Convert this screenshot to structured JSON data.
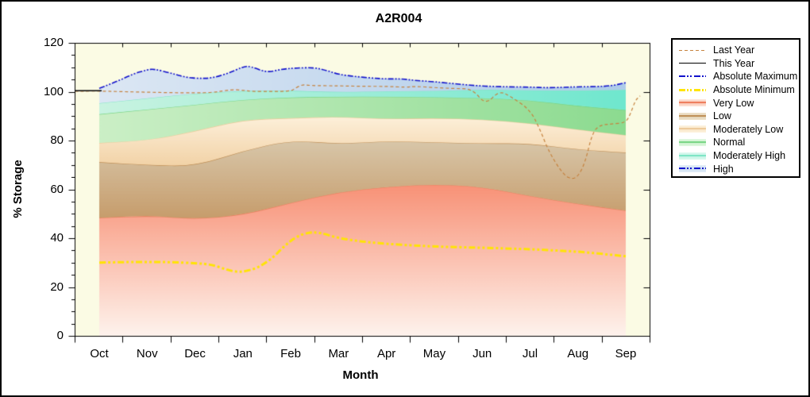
{
  "title": "A2R004",
  "axes": {
    "x_label": "Month",
    "y_label": "% Storage",
    "y_major_ticks": [
      0,
      20,
      40,
      60,
      80,
      100,
      120
    ],
    "y_minor_step": 5,
    "y_range": [
      0,
      120
    ],
    "months": [
      "Oct",
      "Nov",
      "Dec",
      "Jan",
      "Feb",
      "Mar",
      "Apr",
      "May",
      "Jun",
      "Jul",
      "Aug",
      "Sep"
    ]
  },
  "colors": {
    "plot_background": "#FBFBE4",
    "axis": "#000000",
    "last_year": "#C6823E",
    "this_year": "#000000",
    "absolute_maximum": "#1212CC",
    "absolute_minimum": "#FFE405",
    "very_low_edge": "#EE7F5F",
    "low_edge": "#C09058",
    "moderately_low_edge": "#EDCB9B",
    "normal_edge": "#7BD688",
    "moderately_high_edge": "#7FE5C6"
  },
  "legend": {
    "items": [
      {
        "label": "Last Year",
        "swatch": "line",
        "color": "#C6823E",
        "dash": "dash",
        "thickness": 1
      },
      {
        "label": "This Year",
        "swatch": "line",
        "color": "#000000",
        "dash": "solid",
        "thickness": 1
      },
      {
        "label": "Absolute Maximum",
        "swatch": "line",
        "color": "#1212CC",
        "dash": "dashdotdot",
        "thickness": 2
      },
      {
        "label": "Absolute Minimum",
        "swatch": "line",
        "color": "#FFE405",
        "dash": "dashdotdot",
        "thickness": 3
      },
      {
        "label": "Very Low",
        "swatch": "band",
        "fill_top": "#FAC0AC",
        "fill_bottom": "#FDE6DC",
        "edge": "#EE7F5F"
      },
      {
        "label": "Low",
        "swatch": "band",
        "fill_top": "#E0CFB2",
        "fill_bottom": "#EFE3CC",
        "edge": "#C09058"
      },
      {
        "label": "Moderately Low",
        "swatch": "band",
        "fill_top": "#F9E4C4",
        "fill_bottom": "#FDF3E0",
        "edge": "#EDCB9B"
      },
      {
        "label": "Normal",
        "swatch": "band",
        "fill_top": "#C4EFC6",
        "fill_bottom": "#E2F8E2",
        "edge": "#7BD688"
      },
      {
        "label": "Moderately High",
        "swatch": "band",
        "fill_top": "#BFF3E3",
        "fill_bottom": "#DFF9F0",
        "edge": "#7FE5C6"
      },
      {
        "label": "High",
        "swatch": "band_line",
        "fill_top": "#C8DCF0",
        "fill_bottom": "#E4EEF8",
        "line_color": "#1212CC"
      }
    ]
  },
  "chart_data": {
    "type": "area",
    "title": "A2R004",
    "xlabel": "Month",
    "ylabel": "% Storage",
    "ylim": [
      0,
      120
    ],
    "x_unit": "month index, 0 = Oct through 11 = Sep",
    "categories": [
      "Oct",
      "Nov",
      "Dec",
      "Jan",
      "Feb",
      "Mar",
      "Apr",
      "May",
      "Jun",
      "Jul",
      "Aug",
      "Sep"
    ],
    "bands": [
      {
        "name": "Very Low",
        "bottom": 0,
        "top": [
          48.3,
          49.3,
          47.8,
          49.5,
          54.5,
          58.9,
          61.0,
          62.1,
          61.0,
          57.2,
          54.0,
          51.3
        ],
        "fill_from": "#F89176",
        "fill_to": "#FEF3ED",
        "gradient": "vertical",
        "edge": "#EE7F5F"
      },
      {
        "name": "Low",
        "top": [
          71.2,
          70.0,
          69.5,
          75.8,
          80.2,
          78.6,
          79.8,
          79.3,
          78.8,
          78.9,
          76.3,
          75.1
        ],
        "fill_from": "#D8C7AA",
        "fill_to": "#C69C6B",
        "gradient": "vertical",
        "edge": "#C09058"
      },
      {
        "name": "Moderately Low",
        "top": [
          79.0,
          80.0,
          83.8,
          88.5,
          89.2,
          89.8,
          88.8,
          89.2,
          88.7,
          87.1,
          84.5,
          82.2
        ],
        "fill_from": "#FDF0DA",
        "fill_to": "#F2D2A6",
        "gradient": "vertical",
        "edge": "#EDCB9B"
      },
      {
        "name": "Normal",
        "top": [
          90.8,
          92.7,
          94.6,
          96.8,
          97.7,
          98.0,
          98.0,
          97.8,
          97.4,
          96.6,
          94.1,
          92.5
        ],
        "fill_from": "#CBEFC6",
        "fill_to": "#8CDB90",
        "gradient": "horizontal",
        "edge": "#7BD688"
      },
      {
        "name": "Moderately High",
        "top": [
          95.3,
          97.3,
          99.3,
          100.4,
          100.5,
          99.8,
          100.2,
          100.3,
          100.9,
          100.6,
          100.4,
          100.8
        ],
        "fill_from": "#C9F3E1",
        "fill_to": "#6FE7CE",
        "gradient": "horizontal",
        "edge": "#7FE5C6"
      },
      {
        "name": "High",
        "top": "absolute_maximum",
        "fill_from": "#DCE7F4",
        "fill_to": "#AECBE9",
        "gradient": "horizontal",
        "edge": null
      }
    ],
    "lines": [
      {
        "name": "Absolute Minimum",
        "color": "#FFE405",
        "width": 3,
        "dash": [
          8,
          3,
          3,
          3,
          3,
          3
        ],
        "x": [
          0,
          0.5,
          1,
          1.5,
          2,
          2.35,
          2.65,
          2.85,
          3.05,
          3.3,
          3.6,
          3.85,
          4.1,
          4.35,
          4.6,
          5,
          5.5,
          6,
          6.5,
          7,
          7.5,
          8,
          8.5,
          9,
          9.5,
          10,
          10.5,
          11
        ],
        "y": [
          30.0,
          30.2,
          30.3,
          30.2,
          29.8,
          29.2,
          27.2,
          26.2,
          26.4,
          27.8,
          31.5,
          36.5,
          40.5,
          42.3,
          42.4,
          40.0,
          38.6,
          37.7,
          37.1,
          36.6,
          36.3,
          36.1,
          35.8,
          35.5,
          35.0,
          34.5,
          33.6,
          32.6
        ]
      },
      {
        "name": "Last Year",
        "color": "#C6823E",
        "width": 1.2,
        "dash": [
          4,
          3
        ],
        "x": [
          -0.51,
          0,
          0.5,
          1,
          1.5,
          2,
          2.4,
          2.75,
          3,
          3.2,
          3.6,
          4,
          4.1,
          4.25,
          4.4,
          5,
          5.5,
          6,
          6.4,
          6.6,
          7,
          7.4,
          7.8,
          8.07,
          8.35,
          8.6,
          9,
          9.2,
          9.4,
          9.7,
          9.87,
          10.0,
          10.15,
          10.3,
          10.45,
          10.7,
          11.0,
          11.1,
          11.2,
          11.3
        ],
        "y": [
          100.2,
          100.3,
          100.0,
          99.8,
          99.6,
          99.5,
          99.7,
          100.9,
          100.6,
          100.1,
          100.1,
          100.2,
          101.5,
          103.0,
          102.5,
          102.4,
          102.2,
          102.2,
          101.8,
          102.2,
          101.7,
          101.3,
          101.2,
          94.5,
          100.4,
          98.0,
          92.6,
          84.9,
          75.1,
          65.9,
          64.2,
          65.2,
          70.9,
          83.0,
          86.3,
          86.8,
          87.3,
          91.0,
          96.5,
          98.3
        ]
      },
      {
        "name": "Absolute Maximum",
        "color": "#1212CC",
        "width": 1.6,
        "dash": [
          7,
          2,
          2,
          2,
          2,
          2
        ],
        "x": [
          0,
          0.35,
          0.7,
          1,
          1.15,
          1.5,
          1.8,
          2.1,
          2.35,
          2.7,
          3.0,
          3.15,
          3.5,
          3.8,
          4.1,
          4.5,
          4.75,
          5,
          5.35,
          5.7,
          6,
          6.3,
          6.6,
          7,
          7.5,
          8,
          8.5,
          9,
          9.35,
          9.7,
          10,
          10.4,
          10.7,
          11
        ],
        "y": [
          101.4,
          104.0,
          107.2,
          109.0,
          109.3,
          107.6,
          105.9,
          105.4,
          105.6,
          107.5,
          110.2,
          110.5,
          107.8,
          109.2,
          109.7,
          109.9,
          108.7,
          107.1,
          106.2,
          105.6,
          105.2,
          105.3,
          104.6,
          104.1,
          103.1,
          102.3,
          102.0,
          101.9,
          101.6,
          101.8,
          102.0,
          102.1,
          102.4,
          103.7
        ]
      },
      {
        "name": "This Year",
        "color": "#000000",
        "width": 1.4,
        "dash": [],
        "x": [
          -0.51,
          0.05
        ],
        "y": [
          100.4,
          100.4
        ]
      }
    ]
  }
}
